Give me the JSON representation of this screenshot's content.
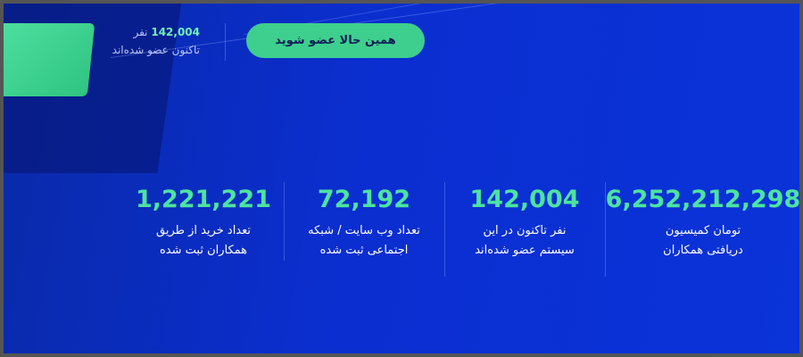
{
  "header": {
    "button": "همین حالا عضو شوید",
    "member_count": "142,004",
    "member_unit": "نفر",
    "member_text": "تاکنون عضو شده‌اند"
  },
  "stats": [
    {
      "number": "6,252,212,298",
      "label": [
        "تومان کمیسیون",
        "دریافتی همکاران"
      ]
    },
    {
      "number": "142,004",
      "label": [
        "نفر تاکنون در این",
        "سیستم عضو شده‌اند"
      ]
    },
    {
      "number": "72,192",
      "label": [
        "تعداد وب سایت / شبکه",
        "اجتماعی ثبت شده"
      ]
    },
    {
      "number": "1,221,221",
      "label": [
        "تعداد خرید از طریق",
        "همکاران ثبت شده"
      ]
    }
  ]
}
